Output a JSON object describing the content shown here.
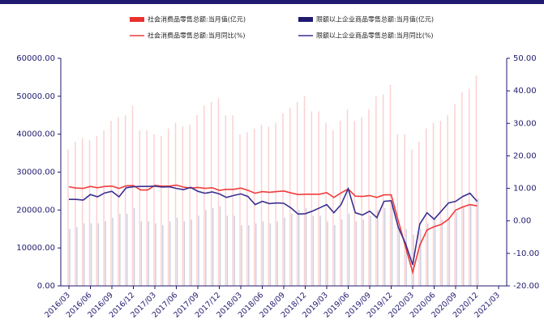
{
  "chart_data": {
    "type": "combo",
    "categories": [
      "2016/03",
      null,
      null,
      "2016/06",
      null,
      null,
      "2016/09",
      null,
      null,
      "2016/12",
      null,
      null,
      "2017/03",
      null,
      null,
      "2017/06",
      null,
      null,
      "2017/09",
      null,
      null,
      "2017/12",
      null,
      null,
      "2018/03",
      null,
      null,
      "2018/06",
      null,
      null,
      "2018/09",
      null,
      null,
      "2018/12",
      null,
      null,
      "2019/03",
      null,
      null,
      "2019/06",
      null,
      null,
      "2019/09",
      null,
      null,
      "2019/12",
      null,
      null,
      "2020/03",
      null,
      null,
      "2020/06",
      null,
      null,
      "2020/09",
      null,
      null,
      "2020/12",
      null,
      null,
      "2021/03"
    ],
    "series": [
      {
        "name": "社会消费品零售总额:当月值(亿元)",
        "type": "bar",
        "color": "#e8312f",
        "values": [
          36000,
          38000,
          39000,
          38500,
          39500,
          41000,
          43500,
          44500,
          45000,
          47500,
          41000,
          41000,
          40000,
          39500,
          41500,
          43000,
          42000,
          42500,
          45000,
          47500,
          48500,
          49500,
          45000,
          45000,
          40000,
          40500,
          41500,
          42500,
          42000,
          43000,
          45500,
          47000,
          48500,
          50000,
          46000,
          46000,
          43000,
          41000,
          43500,
          46500,
          43500,
          44500,
          46500,
          50000,
          50500,
          53000,
          40000,
          40000,
          36000,
          38000,
          41500,
          43000,
          43500,
          45000,
          48000,
          51000,
          52000,
          55500,
          null,
          null,
          null
        ]
      },
      {
        "name": "限额以上企业商品零售总额:当月值(亿元)",
        "type": "bar",
        "color": "#1f1a6e",
        "values": [
          15000,
          15500,
          16500,
          16500,
          16500,
          17000,
          18000,
          19000,
          19000,
          20500,
          17000,
          17000,
          16500,
          16000,
          17000,
          18000,
          17000,
          17500,
          18500,
          20000,
          20500,
          21000,
          18500,
          18500,
          16000,
          16000,
          16500,
          17000,
          16500,
          17000,
          18000,
          19000,
          20000,
          20500,
          18500,
          18500,
          17000,
          16000,
          17500,
          19000,
          17000,
          17500,
          18500,
          20000,
          20500,
          21500,
          15000,
          15000,
          13500,
          15000,
          16500,
          17500,
          17500,
          18000,
          19500,
          21000,
          21500,
          23000,
          null,
          null,
          null
        ]
      },
      {
        "name": "社会消费品零售总额:当月同比(%)",
        "type": "line",
        "axis": "y2",
        "color": "#f03c3c",
        "values": [
          10.5,
          10.1,
          10.0,
          10.6,
          10.2,
          10.6,
          10.7,
          10.0,
          10.8,
          10.9,
          9.5,
          9.5,
          10.9,
          10.7,
          10.7,
          11.0,
          10.4,
          10.1,
          10.3,
          10.0,
          10.2,
          9.4,
          9.7,
          9.7,
          10.1,
          9.4,
          8.5,
          9.0,
          8.8,
          9.0,
          9.2,
          8.6,
          8.1,
          8.2,
          8.2,
          8.2,
          8.7,
          7.2,
          8.6,
          9.8,
          7.6,
          7.5,
          7.8,
          7.2,
          8.0,
          8.0,
          0,
          -8,
          -15.8,
          -7.5,
          -2.8,
          -1.8,
          -1.1,
          0.5,
          3.3,
          4.3,
          5.0,
          4.6,
          null,
          null,
          null
        ]
      },
      {
        "name": "限额以上企业商品零售总额:当月同比(%)",
        "type": "line",
        "axis": "y2",
        "color": "#3a3090",
        "values": [
          6.6,
          6.6,
          6.4,
          8.1,
          7.4,
          8.6,
          9.1,
          7.4,
          10.2,
          10.5,
          10.6,
          10.6,
          10.7,
          10.4,
          10.5,
          10.0,
          9.6,
          10.3,
          9.1,
          8.5,
          8.9,
          8.3,
          7.2,
          7.8,
          8.3,
          7.5,
          5.0,
          6.0,
          5.3,
          5.5,
          5.4,
          4.0,
          2.1,
          2.2,
          3.0,
          4.0,
          5.0,
          2.5,
          5.0,
          9.9,
          2.5,
          1.8,
          3.0,
          1.0,
          6.0,
          6.2,
          -2,
          -7,
          -13.5,
          -1.0,
          2.5,
          0.5,
          3.0,
          5.5,
          6.0,
          7.5,
          8.5,
          6.0,
          null,
          null,
          null
        ]
      }
    ],
    "ylim": [
      0,
      60000
    ],
    "yticks": [
      {
        "value": 0,
        "label": "0.00"
      },
      {
        "value": 10000,
        "label": "10000.00"
      },
      {
        "value": 20000,
        "label": "20000.00"
      },
      {
        "value": 30000,
        "label": "30000.00"
      },
      {
        "value": 40000,
        "label": "40000.00"
      },
      {
        "value": 50000,
        "label": "50000.00"
      },
      {
        "value": 60000,
        "label": "60000.00"
      }
    ],
    "y2lim": [
      -20,
      50
    ],
    "y2ticks": [
      {
        "value": -20,
        "label": "-20.00"
      },
      {
        "value": -10,
        "label": "-10.00"
      },
      {
        "value": 0,
        "label": "0.00"
      },
      {
        "value": 10,
        "label": "10.00"
      },
      {
        "value": 20,
        "label": "20.00"
      },
      {
        "value": 30,
        "label": "30.00"
      },
      {
        "value": 40,
        "label": "40.00"
      },
      {
        "value": 50,
        "label": "50.00"
      }
    ],
    "legend": "top"
  }
}
